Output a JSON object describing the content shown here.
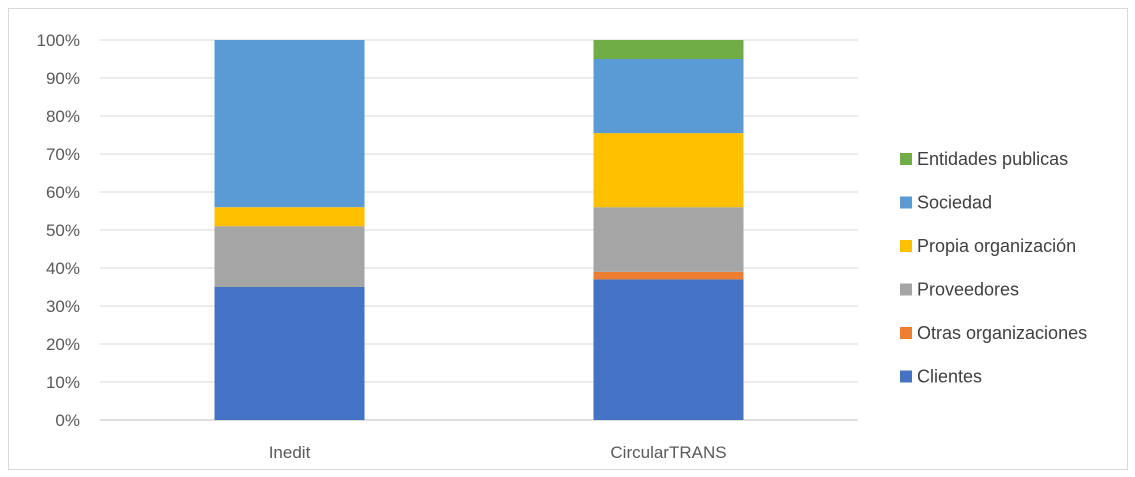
{
  "chart_data": {
    "type": "bar",
    "stacked": "percent",
    "categories": [
      "Inedit",
      "CircularTRANS"
    ],
    "series": [
      {
        "name": "Clientes",
        "color": "#4472C4",
        "values": [
          35,
          37
        ]
      },
      {
        "name": "Otras organizaciones",
        "color": "#ED7D31",
        "values": [
          0,
          2
        ]
      },
      {
        "name": "Proveedores",
        "color": "#A5A5A5",
        "values": [
          16,
          17
        ]
      },
      {
        "name": "Propia organización",
        "color": "#FFC000",
        "values": [
          5,
          19.5
        ]
      },
      {
        "name": "Sociedad",
        "color": "#5B9BD5",
        "values": [
          44,
          19.5
        ]
      },
      {
        "name": "Entidades publicas",
        "color": "#70AD47",
        "values": [
          0,
          5
        ]
      }
    ],
    "ylim": [
      0,
      100
    ],
    "y_ticks": [
      "0%",
      "10%",
      "20%",
      "30%",
      "40%",
      "50%",
      "60%",
      "70%",
      "80%",
      "90%",
      "100%"
    ],
    "grid": true,
    "legend_position": "right",
    "title": "",
    "xlabel": "",
    "ylabel": ""
  }
}
